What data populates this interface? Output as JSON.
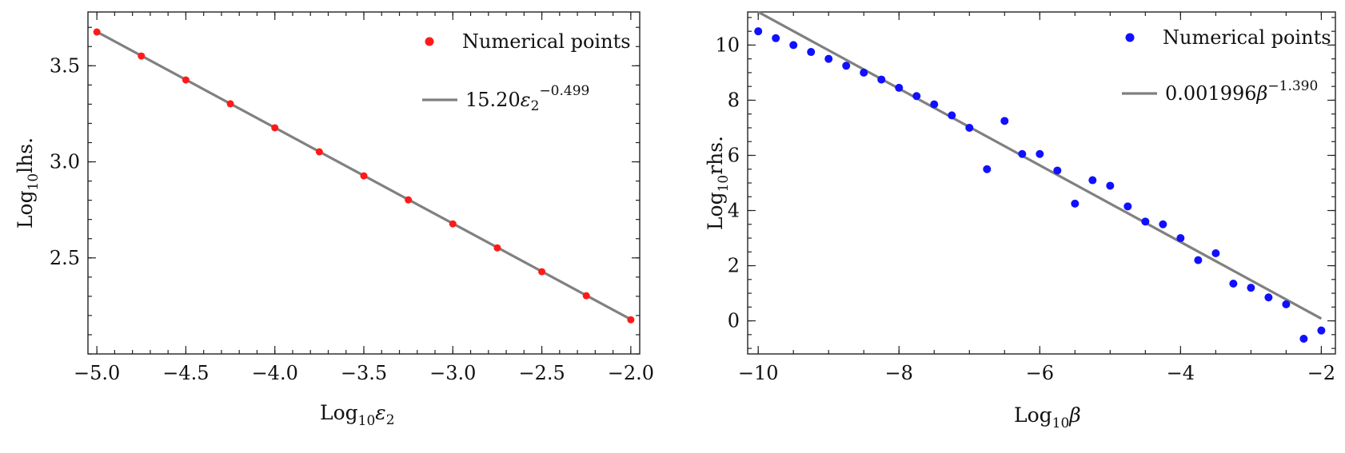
{
  "chart_data": [
    {
      "type": "scatter",
      "id": "left",
      "xlabel": {
        "prefix": "Log",
        "sub": "10",
        "var": "ε",
        "varsub": "2"
      },
      "ylabel": {
        "prefix": "Log",
        "sub": "10",
        "rest": "lhs."
      },
      "xlim": [
        -5.05,
        -1.95
      ],
      "ylim": [
        2.0,
        3.78
      ],
      "xticks": [
        -5.0,
        -4.5,
        -4.0,
        -3.5,
        -3.0,
        -2.5,
        -2.0
      ],
      "xtick_labels": [
        "−5.0",
        "−4.5",
        "−4.0",
        "−3.5",
        "−3.0",
        "−2.5",
        "−2.0"
      ],
      "xminor_step": 0.1,
      "yticks": [
        2.5,
        3.0,
        3.5
      ],
      "ytick_labels": [
        "2.5",
        "3.0",
        "3.5"
      ],
      "yminor_step": 0.1,
      "points": {
        "name": "Numerical points",
        "color": "#ff1a1a",
        "x": [
          -5.0,
          -4.75,
          -4.5,
          -4.25,
          -4.0,
          -3.75,
          -3.5,
          -3.25,
          -3.0,
          -2.75,
          -2.5,
          -2.25,
          -2.0
        ],
        "y": [
          3.676,
          3.551,
          3.426,
          3.302,
          3.177,
          3.052,
          2.927,
          2.802,
          2.677,
          2.552,
          2.428,
          2.303,
          2.178
        ]
      },
      "fit": {
        "color": "#808080",
        "coef": "15.20",
        "var": "ε",
        "varsub": "2",
        "exponent": "−0.499",
        "log10_coef": 1.1818,
        "slope": -0.499
      }
    },
    {
      "type": "scatter",
      "id": "right",
      "xlabel": {
        "prefix": "Log",
        "sub": "10",
        "var": "β",
        "varsub": ""
      },
      "ylabel": {
        "prefix": "Log",
        "sub": "10",
        "rest": "rhs."
      },
      "xlim": [
        -10.15,
        -1.8
      ],
      "ylim": [
        -1.2,
        11.2
      ],
      "xticks": [
        -10,
        -8,
        -6,
        -4,
        -2
      ],
      "xtick_labels": [
        "−10",
        "−8",
        "−6",
        "−4",
        "−2"
      ],
      "xminor_step": 0.5,
      "yticks": [
        0,
        2,
        4,
        6,
        8,
        10
      ],
      "ytick_labels": [
        "0",
        "2",
        "4",
        "6",
        "8",
        "10"
      ],
      "yminor_step": 0.5,
      "points": {
        "name": "Numerical points",
        "color": "#1010ff",
        "x": [
          -10.0,
          -9.75,
          -9.5,
          -9.25,
          -9.0,
          -8.75,
          -8.5,
          -8.25,
          -8.0,
          -7.75,
          -7.5,
          -7.25,
          -7.0,
          -6.75,
          -6.5,
          -6.25,
          -6.0,
          -5.75,
          -5.5,
          -5.25,
          -5.0,
          -4.75,
          -4.5,
          -4.25,
          -4.0,
          -3.75,
          -3.5,
          -3.25,
          -3.0,
          -2.75,
          -2.5,
          -2.25,
          -2.0
        ],
        "y": [
          10.5,
          10.25,
          10.0,
          9.75,
          9.5,
          9.25,
          9.0,
          8.75,
          8.45,
          8.15,
          7.85,
          7.45,
          7.0,
          5.5,
          7.25,
          6.05,
          6.05,
          5.45,
          4.25,
          5.1,
          4.9,
          4.15,
          3.6,
          3.5,
          3.0,
          2.2,
          2.45,
          1.35,
          1.2,
          0.85,
          0.6,
          -0.65,
          -0.35
        ]
      },
      "fit": {
        "color": "#808080",
        "coef": "0.001996",
        "var": "β",
        "varsub": "",
        "exponent": "−1.390",
        "log10_coef": -2.6999,
        "slope": -1.39
      }
    }
  ],
  "legend": {
    "points_label": "Numerical points"
  }
}
